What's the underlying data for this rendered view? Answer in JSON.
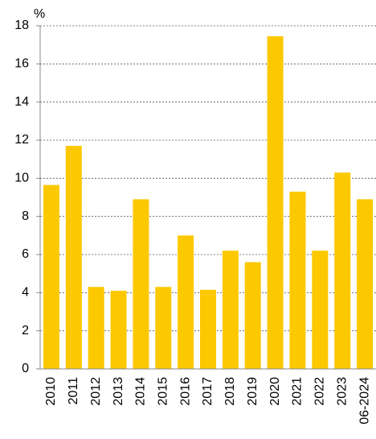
{
  "chart_data": {
    "type": "bar",
    "y_label": "%",
    "categories": [
      "2010",
      "2011",
      "2012",
      "2013",
      "2014",
      "2015",
      "2016",
      "2017",
      "2018",
      "2019",
      "2020",
      "2021",
      "2022",
      "2023",
      "06-2024"
    ],
    "values": [
      9.65,
      11.7,
      4.3,
      4.1,
      8.9,
      4.3,
      7.0,
      4.15,
      6.2,
      5.6,
      17.45,
      9.3,
      6.2,
      10.3,
      8.9
    ],
    "color": "#fcc800",
    "ylim": [
      0,
      18
    ],
    "yticks": [
      0,
      2,
      4,
      6,
      8,
      10,
      12,
      14,
      16,
      18
    ],
    "grid": true
  }
}
